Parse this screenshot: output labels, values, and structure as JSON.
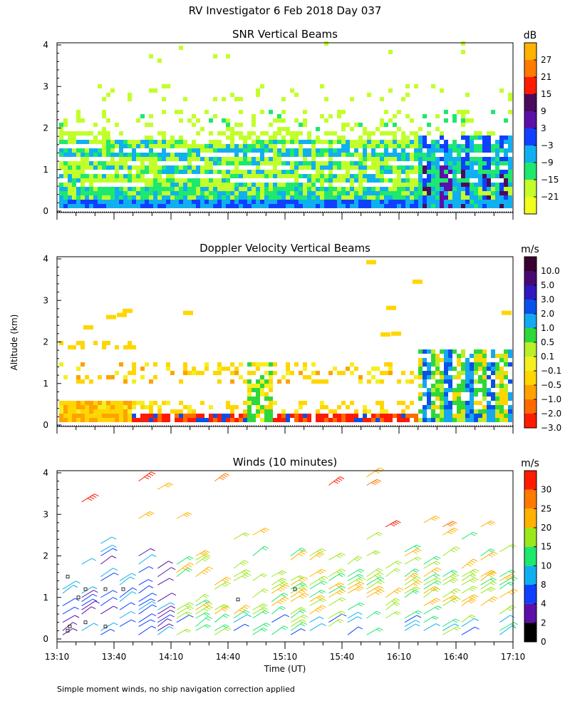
{
  "figure": {
    "title": "RV Investigator   6 Feb 2018 Day 037",
    "ylabel": "Altitude (km)",
    "xlabel": "Time (UT)",
    "footnote": "Simple moment winds, no ship navigation correction applied"
  },
  "chart_data": [
    {
      "type": "heatmap",
      "title": "SNR Vertical Beams",
      "y_ticks": [
        "0",
        "1",
        "2",
        "3",
        "4"
      ],
      "ylim": [
        0,
        4
      ],
      "xlim_minutes": [
        0,
        240
      ],
      "colorbar": {
        "unit": "dB",
        "labels": [
          "27",
          "21",
          "15",
          "9",
          "3",
          "−3",
          "−9",
          "−15",
          "−21"
        ],
        "colors": [
          "#ffb300",
          "#ff7a00",
          "#ff1a00",
          "#4b0a5c",
          "#5c0fa8",
          "#1040ff",
          "#10b0f0",
          "#1ee86e",
          "#c2ff2a",
          "#f0ff20"
        ]
      },
      "summary": "Strong returns below ~1.7 km across the day (−21 to −9 dB); patchy layers near 1.9–2.3 km and 2.6–3.0 km; strongest echoes (up to ~9 dB) in columns after 16:40."
    },
    {
      "type": "heatmap",
      "title": "Doppler Velocity Vertical Beams",
      "y_ticks": [
        "0",
        "1",
        "2",
        "3",
        "4"
      ],
      "ylim": [
        0,
        4
      ],
      "xlim_minutes": [
        0,
        240
      ],
      "colorbar": {
        "unit": "m/s",
        "labels": [
          "10.0",
          "5.0",
          "3.0",
          "2.0",
          "1.0",
          "0.5",
          "0.1",
          "−0.1",
          "−0.5",
          "−1.0",
          "−2.0",
          "−3.0"
        ],
        "colors": [
          "#3a0030",
          "#480a70",
          "#3018c0",
          "#0a50e8",
          "#14a8ee",
          "#2ed83a",
          "#b8ee2a",
          "#f4f020",
          "#ffd600",
          "#ffa200",
          "#ff6a00",
          "#ff1a00"
        ]
      },
      "summary": "Mostly weak downward velocities (−0.1 to −1.0 m/s) below 2 km, stronger downward motion (−2 to −3 m/s) near 0.2–0.4 km; upward (0.1–2.0 m/s) columns near 14:50 and after 16:40."
    },
    {
      "type": "scatter",
      "title": "Winds (10 minutes)",
      "y_ticks": [
        "0",
        "1",
        "2",
        "3",
        "4"
      ],
      "ylim": [
        0,
        4
      ],
      "x_ticks": [
        "13:10",
        "13:40",
        "14:10",
        "14:40",
        "15:10",
        "15:40",
        "16:10",
        "16:40",
        "17:10"
      ],
      "colorbar": {
        "unit": "m/s",
        "labels": [
          "30",
          "25",
          "20",
          "15",
          "10",
          "8",
          "4",
          "2",
          "0"
        ],
        "colors": [
          "#ff1a00",
          "#ff7a00",
          "#ffb300",
          "#9be81a",
          "#1ee86e",
          "#10b0f0",
          "#1040ff",
          "#5c0fa8",
          "#000000"
        ]
      },
      "summary": "Wind barbs at 10-minute intervals; weak winds (0–8 m/s) below 1 km early in the period, 10–20 m/s between 0.5–2 km later, strongest (25–30 m/s) near 3–4 km around 15:50 and 16:50."
    }
  ]
}
